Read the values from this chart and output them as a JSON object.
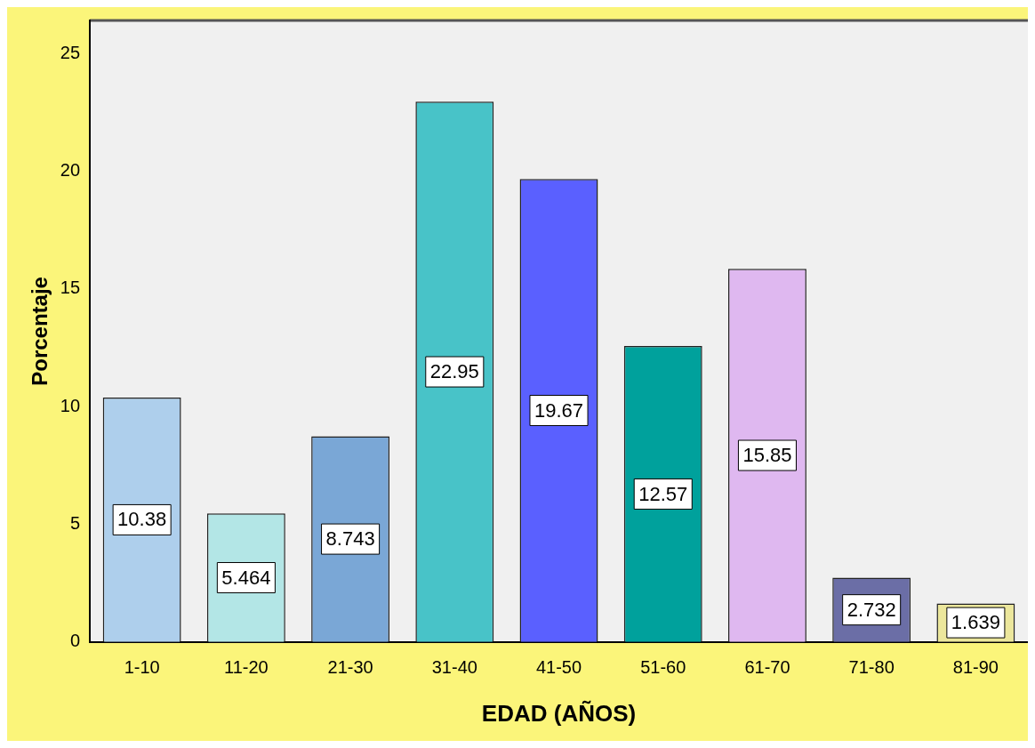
{
  "chart_data": {
    "type": "bar",
    "categories": [
      "1-10",
      "11-20",
      "21-30",
      "31-40",
      "41-50",
      "51-60",
      "61-70",
      "71-80",
      "81-90"
    ],
    "values": [
      10.38,
      5.464,
      8.743,
      22.95,
      19.67,
      12.57,
      15.85,
      2.732,
      1.639
    ],
    "colors": [
      "#aecfec",
      "#b3e6e6",
      "#7aa7d6",
      "#48c3c8",
      "#5a60ff",
      "#00a19c",
      "#dfb8f0",
      "#6b6ea6",
      "#ece79c"
    ],
    "xlabel": "EDAD (AÑOS)",
    "ylabel": "Porcentaje",
    "ylim": [
      0,
      26.4
    ],
    "yticks": [
      0,
      5,
      10,
      15,
      20,
      25
    ],
    "grid": false,
    "legend": false,
    "data_labels": true
  }
}
